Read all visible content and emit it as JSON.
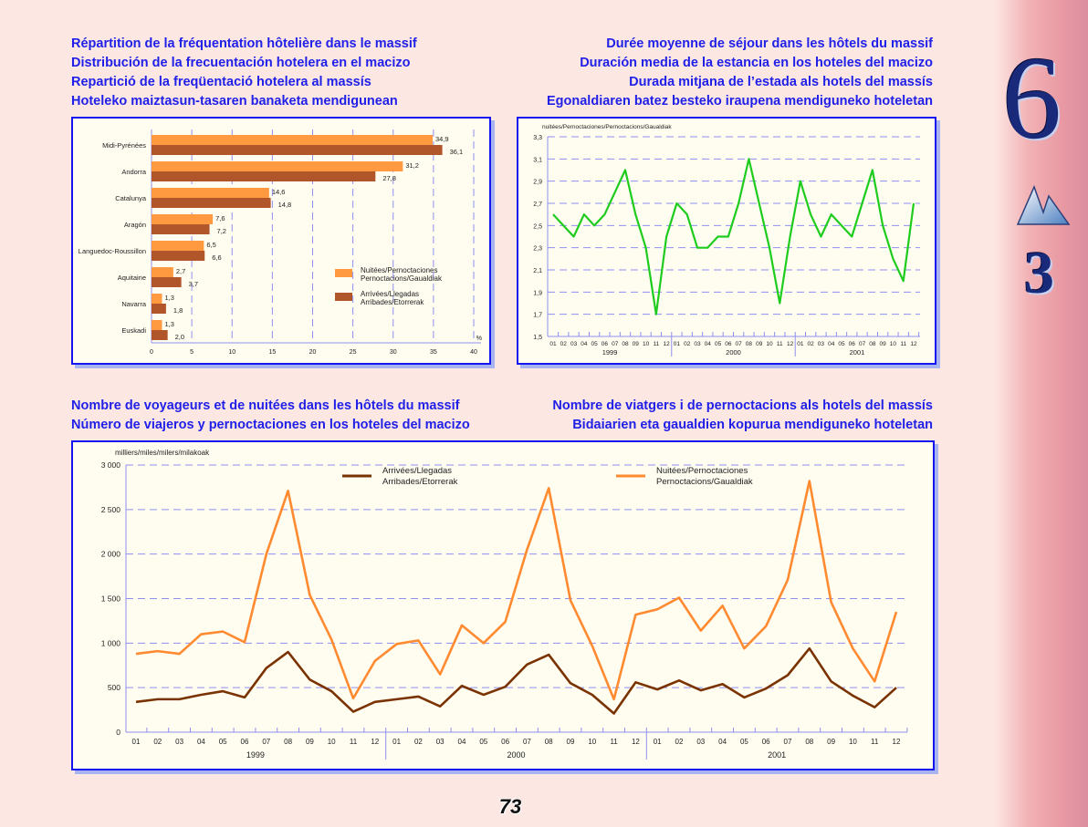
{
  "titles": {
    "top_left": [
      "Répartition de la fréquentation hôtelière dans le massif",
      "Distribución de la frecuentación hotelera en el macizo",
      "Repartició de la freqüentació hotelera al massís",
      "Hoteleko maiztasun-tasaren banaketa mendigunean"
    ],
    "top_right": [
      "Durée moyenne de séjour dans les hôtels du massif",
      "Duración media de la estancia en los hoteles del macizo",
      "Durada mitjana de l’estada als hotels del massís",
      "Egonaldiaren batez besteko iraupena mendiguneko hoteletan"
    ],
    "bottom_left": [
      "Nombre de voyageurs et de nuitées dans les hôtels du massif",
      "Número de viajeros y pernoctaciones en los hoteles del macizo"
    ],
    "bottom_right": [
      "Nombre de viatgers i de pernoctacions als hotels del massís",
      "Bidaiarien eta gaualdien kopurua mendiguneko hoteletan"
    ]
  },
  "chapter": {
    "number": "6",
    "section": "3"
  },
  "page_number": "73",
  "colors": {
    "title": "#2020e8",
    "nuitees": "#ff9a40",
    "arrivees": "#b0562a",
    "duration": "#1ecc1e",
    "nuitees_line": "#ff8a30",
    "arrivees_line": "#7a3300"
  },
  "chart_data": [
    {
      "type": "bar",
      "orientation": "horizontal",
      "categories": [
        "Midi-Pyrénées",
        "Andorra",
        "Catalunya",
        "Aragón",
        "Languedoc-Roussillon",
        "Aquitaine",
        "Navarra",
        "Euskadi"
      ],
      "series": [
        {
          "name": "Nuitées/Pernoctaciones\nPernoctacions/Gaualdiak",
          "labels": [
            "Nuitées/Pernoctaciones",
            "Pernoctacions/Gaualdiak"
          ],
          "values": [
            34.9,
            31.2,
            14.6,
            7.6,
            6.5,
            2.7,
            1.3,
            1.3
          ],
          "value_labels": [
            "34,9",
            "31,2",
            "14,6",
            "7,6",
            "6,5",
            "2,7",
            "1,3",
            "1,3"
          ]
        },
        {
          "name": "Arrivées/Llegadas\nArribades/Etorrerak",
          "labels": [
            "Arrivées/Llegadas",
            "Arribades/Etorrerak"
          ],
          "values": [
            36.1,
            27.8,
            14.8,
            7.2,
            6.6,
            3.7,
            1.8,
            2.0
          ],
          "value_labels": [
            "36,1",
            "27,8",
            "14,8",
            "7,2",
            "6,6",
            "3,7",
            "1,8",
            "2,0"
          ]
        }
      ],
      "xlim": [
        0,
        40
      ],
      "xticks": [
        "0",
        "5",
        "10",
        "15",
        "20",
        "25",
        "30",
        "35",
        "40"
      ],
      "xlabel": "%",
      "legend": "bottom-right",
      "grid": true
    },
    {
      "type": "line",
      "ylabel": "nuitées/Pernoctaciones/Pernoctacions/Gaualdiak",
      "months": [
        "01",
        "02",
        "03",
        "04",
        "05",
        "06",
        "07",
        "08",
        "09",
        "10",
        "11",
        "12"
      ],
      "years": [
        "1999",
        "2000",
        "2001"
      ],
      "ylim": [
        1.5,
        3.3
      ],
      "yticks": [
        "1,5",
        "1,7",
        "1,9",
        "2,1",
        "2,3",
        "2,5",
        "2,7",
        "2,9",
        "3,1",
        "3,3"
      ],
      "series": [
        {
          "name": "Durée moyenne",
          "values": [
            2.6,
            2.5,
            2.4,
            2.6,
            2.5,
            2.6,
            2.8,
            3.0,
            2.6,
            2.3,
            1.7,
            2.4,
            2.7,
            2.6,
            2.3,
            2.3,
            2.4,
            2.4,
            2.7,
            3.1,
            2.7,
            2.3,
            1.8,
            2.4,
            2.9,
            2.6,
            2.4,
            2.6,
            2.5,
            2.4,
            2.7,
            3.0,
            2.5,
            2.2,
            2.0,
            2.7
          ]
        }
      ],
      "grid": true
    },
    {
      "type": "line",
      "ylabel": "milliers/miles/milers/milakoak",
      "months": [
        "01",
        "02",
        "03",
        "04",
        "05",
        "06",
        "07",
        "08",
        "09",
        "10",
        "11",
        "12"
      ],
      "years": [
        "1999",
        "2000",
        "2001"
      ],
      "ylim": [
        0,
        3000
      ],
      "yticks": [
        "0",
        "500",
        "1 000",
        "1 500",
        "2 000",
        "2 500",
        "3 000"
      ],
      "series": [
        {
          "name": "Arrivées/Llegadas\nArribades/Etorrerak",
          "labels": [
            "Arrivées/Llegadas",
            "Arribades/Etorrerak"
          ],
          "values": [
            340,
            370,
            370,
            420,
            460,
            390,
            720,
            900,
            590,
            460,
            230,
            340,
            370,
            400,
            290,
            520,
            420,
            510,
            760,
            870,
            550,
            420,
            210,
            560,
            480,
            580,
            470,
            540,
            390,
            490,
            640,
            940,
            570,
            410,
            280,
            500
          ]
        },
        {
          "name": "Nuitées/Pernoctaciones\nPernoctacions/Gaualdiak",
          "labels": [
            "Nuitées/Pernoctaciones",
            "Pernoctacions/Gaualdiak"
          ],
          "values": [
            880,
            910,
            880,
            1100,
            1130,
            1010,
            2000,
            2710,
            1540,
            1040,
            380,
            800,
            990,
            1030,
            650,
            1200,
            1000,
            1240,
            2050,
            2740,
            1480,
            970,
            370,
            1320,
            1380,
            1510,
            1140,
            1420,
            940,
            1190,
            1710,
            2820,
            1460,
            940,
            570,
            1350
          ]
        }
      ],
      "legend": "top",
      "grid": true
    }
  ]
}
